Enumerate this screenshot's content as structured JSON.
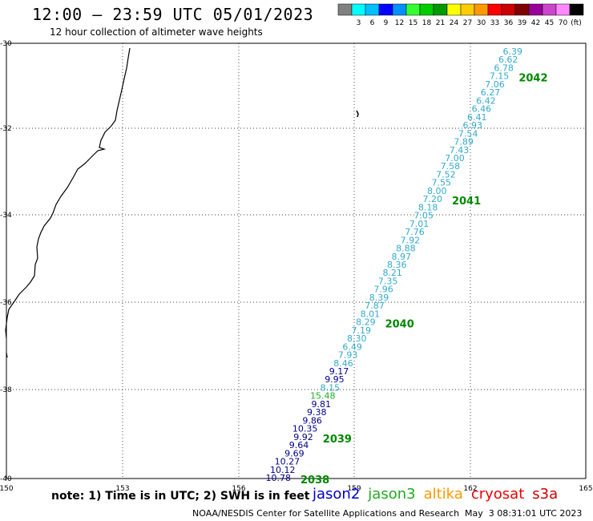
{
  "title": "12:00 — 23:59 UTC 05/01/2023",
  "subtitle": "12 hour collection of altimeter wave heights",
  "legend": {
    "colors": [
      "#808080",
      "#00ffff",
      "#00bfff",
      "#0000ff",
      "#0090ff",
      "#33ff33",
      "#00cc00",
      "#009900",
      "#ffff00",
      "#ffcc00",
      "#ff9900",
      "#ff0000",
      "#cc0000",
      "#800000",
      "#990099",
      "#cc44cc",
      "#ff88ff",
      "#000000"
    ],
    "labels": [
      "3",
      "6",
      "9",
      "12",
      "15",
      "18",
      "21",
      "24",
      "27",
      "30",
      "33",
      "36",
      "39",
      "42",
      "45",
      "70"
    ],
    "unit": "(ft)"
  },
  "axes": {
    "lon_ticks": [
      "150",
      "153",
      "156",
      "159",
      "162",
      "165"
    ],
    "lat_ticks": [
      "-30",
      "-32",
      "-34",
      "-36",
      "-38",
      "-40"
    ]
  },
  "track_colors": {
    "jason3": "#33aacc",
    "jason2": "#00008b",
    "green": "#22aa22"
  },
  "wave_heights": [
    {
      "v": "6.39",
      "s": "jason3"
    },
    {
      "v": "6.62",
      "s": "jason3"
    },
    {
      "v": "6.78",
      "s": "jason3"
    },
    {
      "v": "7.15",
      "s": "jason3"
    },
    {
      "v": "7.06",
      "s": "jason3"
    },
    {
      "v": "6.27",
      "s": "jason3"
    },
    {
      "v": "6.42",
      "s": "jason3"
    },
    {
      "v": "6.46",
      "s": "jason3"
    },
    {
      "v": "6.41",
      "s": "jason3"
    },
    {
      "v": "6.93",
      "s": "jason3"
    },
    {
      "v": "7.54",
      "s": "jason3"
    },
    {
      "v": "7.89",
      "s": "jason3"
    },
    {
      "v": "7.43",
      "s": "jason3"
    },
    {
      "v": "7.00",
      "s": "jason3"
    },
    {
      "v": "7.58",
      "s": "jason3"
    },
    {
      "v": "7.52",
      "s": "jason3"
    },
    {
      "v": "7.55",
      "s": "jason3"
    },
    {
      "v": "8.00",
      "s": "jason3"
    },
    {
      "v": "7.20",
      "s": "jason3"
    },
    {
      "v": "8.18",
      "s": "jason3"
    },
    {
      "v": "7.05",
      "s": "jason3"
    },
    {
      "v": "7.01",
      "s": "jason3"
    },
    {
      "v": "7.76",
      "s": "jason3"
    },
    {
      "v": "7.92",
      "s": "jason3"
    },
    {
      "v": "8.88",
      "s": "jason3"
    },
    {
      "v": "8.97",
      "s": "jason3"
    },
    {
      "v": "8.36",
      "s": "jason3"
    },
    {
      "v": "8.21",
      "s": "jason3"
    },
    {
      "v": "7.35",
      "s": "jason3"
    },
    {
      "v": "7.96",
      "s": "jason3"
    },
    {
      "v": "8.39",
      "s": "jason3"
    },
    {
      "v": "7.87",
      "s": "jason3"
    },
    {
      "v": "8.01",
      "s": "jason3"
    },
    {
      "v": "8.29",
      "s": "jason3"
    },
    {
      "v": "7.19",
      "s": "jason3"
    },
    {
      "v": "8.30",
      "s": "jason3"
    },
    {
      "v": "6.49",
      "s": "jason3"
    },
    {
      "v": "7.93",
      "s": "jason3"
    },
    {
      "v": "8.46",
      "s": "jason3"
    },
    {
      "v": "9.17",
      "s": "jason2"
    },
    {
      "v": "9.95",
      "s": "jason2"
    },
    {
      "v": "8.15",
      "s": "jason3"
    },
    {
      "v": "15.48",
      "s": "green"
    },
    {
      "v": "9.81",
      "s": "jason2"
    },
    {
      "v": "9.38",
      "s": "jason2"
    },
    {
      "v": "9.86",
      "s": "jason2"
    },
    {
      "v": "10.35",
      "s": "jason2"
    },
    {
      "v": "9.92",
      "s": "jason2"
    },
    {
      "v": "9.64",
      "s": "jason2"
    },
    {
      "v": "9.69",
      "s": "jason2"
    },
    {
      "v": "10.27",
      "s": "jason2"
    },
    {
      "v": "10.12",
      "s": "jason2"
    },
    {
      "v": "10.78",
      "s": "jason2"
    }
  ],
  "time_labels": [
    {
      "text": "2042",
      "after": 3
    },
    {
      "text": "2041",
      "after": 18
    },
    {
      "text": "2040",
      "after": 33
    },
    {
      "text": "2039",
      "after": 47
    },
    {
      "text": "2038",
      "after": 52
    }
  ],
  "note": "note: 1) Time is in UTC; 2) SWH is in feet",
  "satellites": [
    {
      "name": "jason2",
      "color": "#0000cc"
    },
    {
      "name": "jason3",
      "color": "#22aa22"
    },
    {
      "name": "altika",
      "color": "#ff9900"
    },
    {
      "name": "cryosat",
      "color": "#ee0000"
    },
    {
      "name": "s3a",
      "color": "#cc0000"
    }
  ],
  "footer_left": "NOAA/NESDIS Center for Satellite Applications and Research",
  "footer_right": "May  3 08:31:01 UTC 2023"
}
